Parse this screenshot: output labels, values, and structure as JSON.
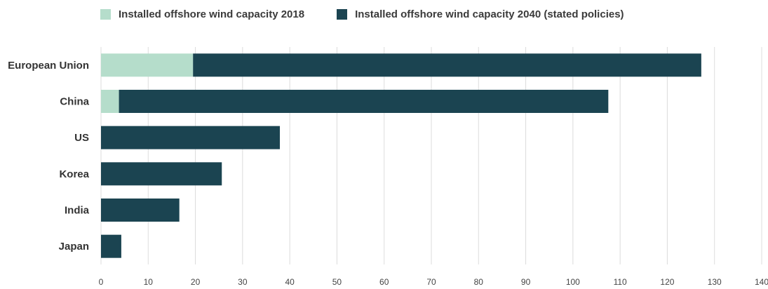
{
  "chart_data": {
    "type": "bar",
    "orientation": "horizontal",
    "stacked": true,
    "categories": [
      "European Union",
      "China",
      "US",
      "Korea",
      "India",
      "Japan"
    ],
    "series": [
      {
        "name": "Installed offshore wind capacity 2018",
        "color": "#b5ddcb",
        "values": [
          19.5,
          3.8,
          0,
          0,
          0,
          0
        ]
      },
      {
        "name": "Installed offshore wind capacity 2040 (stated policies)",
        "color": "#1b4451",
        "values": [
          107.7,
          103.7,
          37.9,
          25.6,
          16.6,
          4.3
        ]
      }
    ],
    "xlim": [
      0,
      140
    ],
    "xticks": [
      0,
      10,
      20,
      30,
      40,
      50,
      60,
      70,
      80,
      90,
      100,
      110,
      120,
      130,
      140
    ],
    "grid": true,
    "legend_position": "top"
  }
}
